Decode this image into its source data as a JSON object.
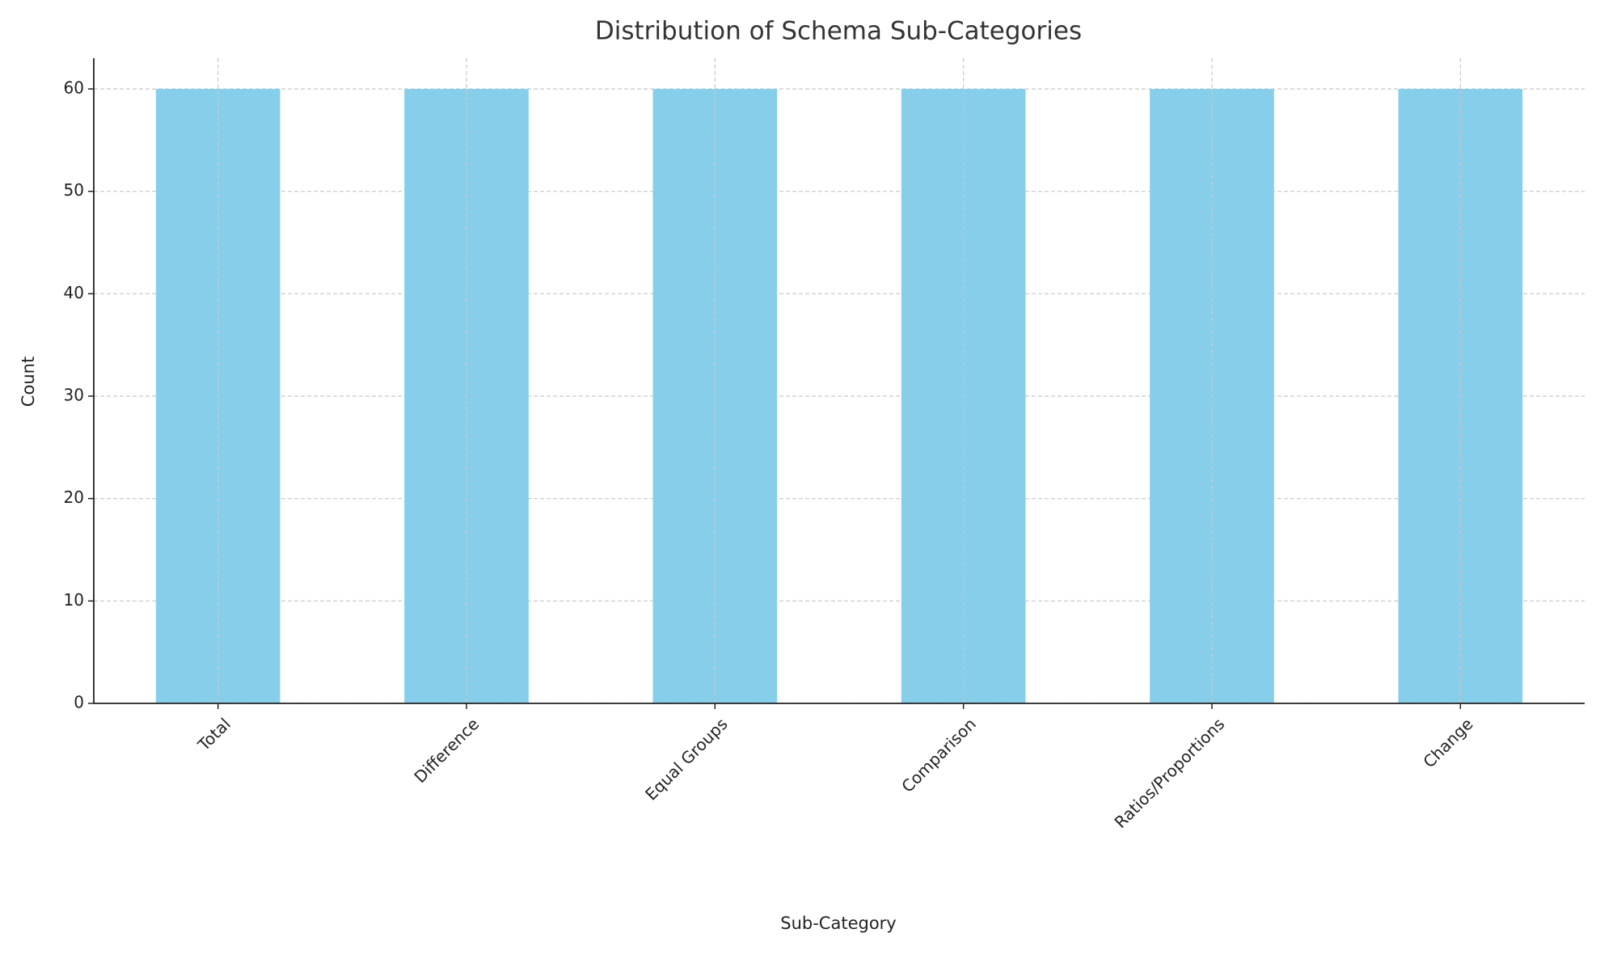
{
  "chart_data": {
    "type": "bar",
    "title": "Distribution of Schema Sub-Categories",
    "x_label": "Sub-Category",
    "y_label": "Count",
    "categories": [
      "Total",
      "Difference",
      "Equal Groups",
      "Comparison",
      "Ratios/Proportions",
      "Change"
    ],
    "values": [
      60,
      60,
      60,
      60,
      60,
      60
    ],
    "color": "#87ceeb",
    "ylim": [
      0,
      63
    ],
    "yticks": [
      0,
      10,
      20,
      30,
      40,
      50,
      60
    ],
    "grid": true
  }
}
